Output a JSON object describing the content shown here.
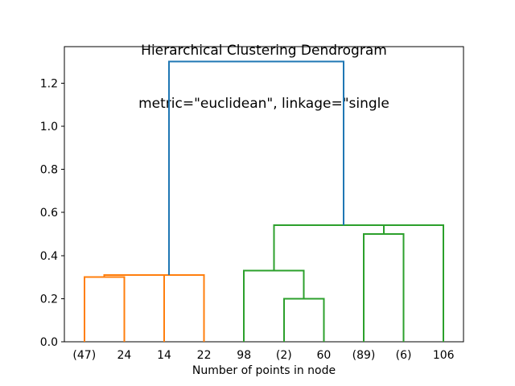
{
  "title": {
    "line1": "Hierarchical Clustering Dendrogram",
    "line2": "metric=\"euclidean\", linkage=\"single"
  },
  "chart_data": {
    "type": "dendrogram",
    "title": "Hierarchical Clustering Dendrogram\nmetric=\"euclidean\", linkage=\"single",
    "metric": "euclidean",
    "linkage": "single",
    "xlabel": "Number of points in node",
    "ylabel": "",
    "leaf_labels": [
      "(47)",
      "24",
      "14",
      "22",
      "98",
      "(2)",
      "60",
      "(89)",
      "(6)",
      "106"
    ],
    "leaf_x": [
      5,
      15,
      25,
      35,
      45,
      55,
      65,
      75,
      85,
      95
    ],
    "xlim": [
      0,
      100
    ],
    "ylim": [
      0,
      1.369
    ],
    "yticks": [
      0.0,
      0.2,
      0.4,
      0.6,
      0.8,
      1.0,
      1.2
    ],
    "ytick_labels": [
      "0.0",
      "0.2",
      "0.4",
      "0.6",
      "0.8",
      "1.0",
      "1.2"
    ],
    "grid": false,
    "legend": null,
    "colors": {
      "root_link": "#1f77b4",
      "cluster1": "#ff7f0e",
      "cluster2": "#2ca02c",
      "spine": "#000000"
    },
    "links": [
      {
        "color": "#ff7f0e",
        "x": [
          5,
          5,
          15,
          15
        ],
        "y": [
          0,
          0.3,
          0.3,
          0
        ]
      },
      {
        "color": "#ff7f0e",
        "x": [
          10,
          10,
          25,
          25
        ],
        "y": [
          0.3,
          0.31,
          0.31,
          0
        ]
      },
      {
        "color": "#ff7f0e",
        "x": [
          17.5,
          17.5,
          35,
          35
        ],
        "y": [
          0.31,
          0.31,
          0.31,
          0
        ]
      },
      {
        "color": "#2ca02c",
        "x": [
          55,
          55,
          65,
          65
        ],
        "y": [
          0,
          0.2,
          0.2,
          0
        ]
      },
      {
        "color": "#2ca02c",
        "x": [
          45,
          45,
          60,
          60
        ],
        "y": [
          0,
          0.33,
          0.33,
          0.2
        ]
      },
      {
        "color": "#2ca02c",
        "x": [
          75,
          75,
          85,
          85
        ],
        "y": [
          0,
          0.5,
          0.5,
          0
        ]
      },
      {
        "color": "#2ca02c",
        "x": [
          80,
          80,
          95,
          95
        ],
        "y": [
          0.5,
          0.54,
          0.54,
          0
        ]
      },
      {
        "color": "#2ca02c",
        "x": [
          52.5,
          52.5,
          87.5,
          87.5
        ],
        "y": [
          0.33,
          0.54,
          0.54,
          0.54
        ]
      },
      {
        "color": "#1f77b4",
        "x": [
          26.25,
          26.25,
          70,
          70
        ],
        "y": [
          0.31,
          1.3,
          1.3,
          0.54
        ]
      }
    ],
    "merges": [
      {
        "children": [
          "(47)",
          "24"
        ],
        "height": 0.3
      },
      {
        "children": [
          "(47)+24",
          "14"
        ],
        "height": 0.31
      },
      {
        "children": [
          "(47)+24+14",
          "22"
        ],
        "height": 0.31
      },
      {
        "children": [
          "(2)",
          "60"
        ],
        "height": 0.2
      },
      {
        "children": [
          "98",
          "(2)+60"
        ],
        "height": 0.33
      },
      {
        "children": [
          "(89)",
          "(6)"
        ],
        "height": 0.5
      },
      {
        "children": [
          "(89)+(6)",
          "106"
        ],
        "height": 0.54
      },
      {
        "children": [
          "98+(2)+60",
          "(89)+(6)+106"
        ],
        "height": 0.54
      },
      {
        "children": [
          "orange-cluster",
          "green-cluster"
        ],
        "height": 1.3
      }
    ]
  }
}
